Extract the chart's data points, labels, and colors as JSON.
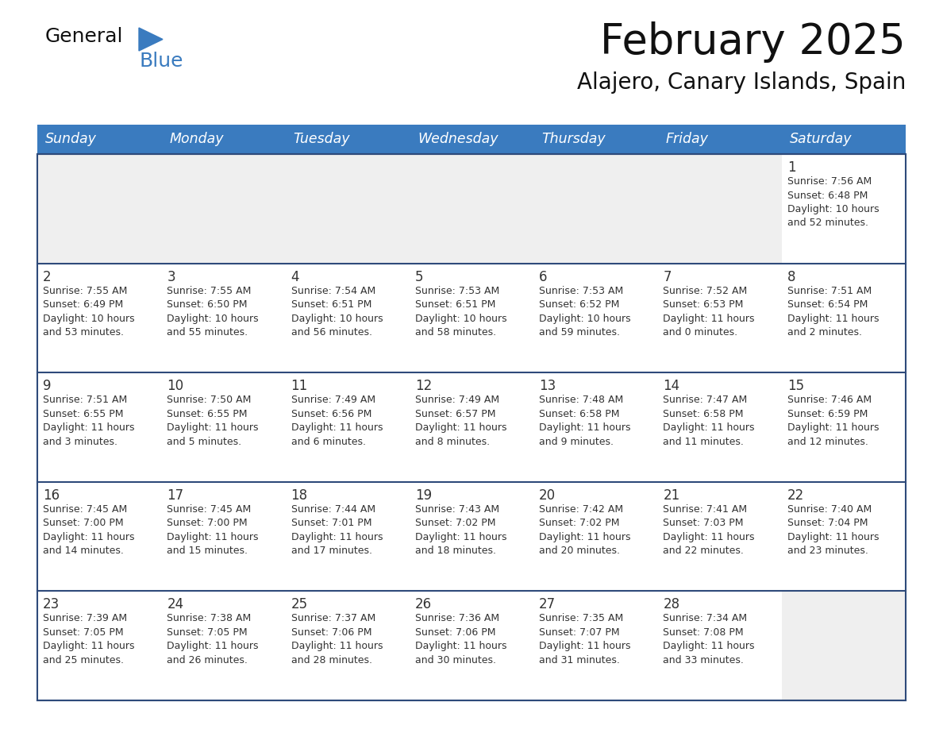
{
  "title": "February 2025",
  "subtitle": "Alajero, Canary Islands, Spain",
  "header_bg": "#3a7bbf",
  "header_text": "#FFFFFF",
  "day_names": [
    "Sunday",
    "Monday",
    "Tuesday",
    "Wednesday",
    "Thursday",
    "Friday",
    "Saturday"
  ],
  "row_line_color": "#2e4a7a",
  "cell_bg_normal": "#FFFFFF",
  "cell_bg_empty_row": "#EFEFEF",
  "date_color": "#333333",
  "info_color": "#333333",
  "logo_general_color": "#111111",
  "logo_blue_color": "#3a7bbf",
  "weeks": [
    [
      {
        "date": "",
        "info": ""
      },
      {
        "date": "",
        "info": ""
      },
      {
        "date": "",
        "info": ""
      },
      {
        "date": "",
        "info": ""
      },
      {
        "date": "",
        "info": ""
      },
      {
        "date": "",
        "info": ""
      },
      {
        "date": "1",
        "info": "Sunrise: 7:56 AM\nSunset: 6:48 PM\nDaylight: 10 hours\nand 52 minutes."
      }
    ],
    [
      {
        "date": "2",
        "info": "Sunrise: 7:55 AM\nSunset: 6:49 PM\nDaylight: 10 hours\nand 53 minutes."
      },
      {
        "date": "3",
        "info": "Sunrise: 7:55 AM\nSunset: 6:50 PM\nDaylight: 10 hours\nand 55 minutes."
      },
      {
        "date": "4",
        "info": "Sunrise: 7:54 AM\nSunset: 6:51 PM\nDaylight: 10 hours\nand 56 minutes."
      },
      {
        "date": "5",
        "info": "Sunrise: 7:53 AM\nSunset: 6:51 PM\nDaylight: 10 hours\nand 58 minutes."
      },
      {
        "date": "6",
        "info": "Sunrise: 7:53 AM\nSunset: 6:52 PM\nDaylight: 10 hours\nand 59 minutes."
      },
      {
        "date": "7",
        "info": "Sunrise: 7:52 AM\nSunset: 6:53 PM\nDaylight: 11 hours\nand 0 minutes."
      },
      {
        "date": "8",
        "info": "Sunrise: 7:51 AM\nSunset: 6:54 PM\nDaylight: 11 hours\nand 2 minutes."
      }
    ],
    [
      {
        "date": "9",
        "info": "Sunrise: 7:51 AM\nSunset: 6:55 PM\nDaylight: 11 hours\nand 3 minutes."
      },
      {
        "date": "10",
        "info": "Sunrise: 7:50 AM\nSunset: 6:55 PM\nDaylight: 11 hours\nand 5 minutes."
      },
      {
        "date": "11",
        "info": "Sunrise: 7:49 AM\nSunset: 6:56 PM\nDaylight: 11 hours\nand 6 minutes."
      },
      {
        "date": "12",
        "info": "Sunrise: 7:49 AM\nSunset: 6:57 PM\nDaylight: 11 hours\nand 8 minutes."
      },
      {
        "date": "13",
        "info": "Sunrise: 7:48 AM\nSunset: 6:58 PM\nDaylight: 11 hours\nand 9 minutes."
      },
      {
        "date": "14",
        "info": "Sunrise: 7:47 AM\nSunset: 6:58 PM\nDaylight: 11 hours\nand 11 minutes."
      },
      {
        "date": "15",
        "info": "Sunrise: 7:46 AM\nSunset: 6:59 PM\nDaylight: 11 hours\nand 12 minutes."
      }
    ],
    [
      {
        "date": "16",
        "info": "Sunrise: 7:45 AM\nSunset: 7:00 PM\nDaylight: 11 hours\nand 14 minutes."
      },
      {
        "date": "17",
        "info": "Sunrise: 7:45 AM\nSunset: 7:00 PM\nDaylight: 11 hours\nand 15 minutes."
      },
      {
        "date": "18",
        "info": "Sunrise: 7:44 AM\nSunset: 7:01 PM\nDaylight: 11 hours\nand 17 minutes."
      },
      {
        "date": "19",
        "info": "Sunrise: 7:43 AM\nSunset: 7:02 PM\nDaylight: 11 hours\nand 18 minutes."
      },
      {
        "date": "20",
        "info": "Sunrise: 7:42 AM\nSunset: 7:02 PM\nDaylight: 11 hours\nand 20 minutes."
      },
      {
        "date": "21",
        "info": "Sunrise: 7:41 AM\nSunset: 7:03 PM\nDaylight: 11 hours\nand 22 minutes."
      },
      {
        "date": "22",
        "info": "Sunrise: 7:40 AM\nSunset: 7:04 PM\nDaylight: 11 hours\nand 23 minutes."
      }
    ],
    [
      {
        "date": "23",
        "info": "Sunrise: 7:39 AM\nSunset: 7:05 PM\nDaylight: 11 hours\nand 25 minutes."
      },
      {
        "date": "24",
        "info": "Sunrise: 7:38 AM\nSunset: 7:05 PM\nDaylight: 11 hours\nand 26 minutes."
      },
      {
        "date": "25",
        "info": "Sunrise: 7:37 AM\nSunset: 7:06 PM\nDaylight: 11 hours\nand 28 minutes."
      },
      {
        "date": "26",
        "info": "Sunrise: 7:36 AM\nSunset: 7:06 PM\nDaylight: 11 hours\nand 30 minutes."
      },
      {
        "date": "27",
        "info": "Sunrise: 7:35 AM\nSunset: 7:07 PM\nDaylight: 11 hours\nand 31 minutes."
      },
      {
        "date": "28",
        "info": "Sunrise: 7:34 AM\nSunset: 7:08 PM\nDaylight: 11 hours\nand 33 minutes."
      },
      {
        "date": "",
        "info": ""
      }
    ]
  ]
}
